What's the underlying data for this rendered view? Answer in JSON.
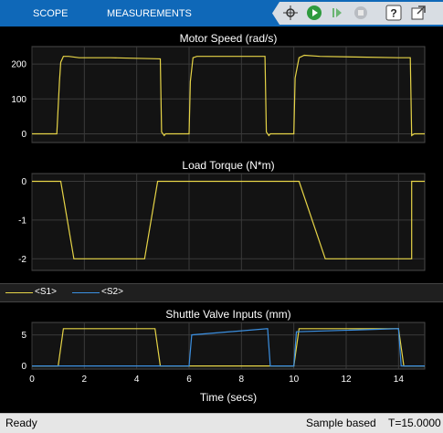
{
  "toolbar": {
    "tabs": [
      "SCOPE",
      "MEASUREMENTS"
    ],
    "icons": [
      "highlight-signal-icon",
      "run-icon",
      "step-forward-icon",
      "stop-icon",
      "help-icon",
      "undock-icon"
    ]
  },
  "plots": [
    {
      "title": "Motor Speed (rad/s)",
      "yticks": [
        0,
        100,
        200
      ],
      "ylim": [
        -25,
        250
      ]
    },
    {
      "title": "Load Torque (N*m)",
      "yticks": [
        0,
        -1,
        -2
      ],
      "ylim": [
        -2.3,
        0.2
      ]
    },
    {
      "title": "Shuttle Valve Inputs (mm)",
      "yticks": [
        0,
        5
      ],
      "ylim": [
        -0.5,
        7
      ]
    }
  ],
  "legend": {
    "items": [
      {
        "label": "<S1>",
        "color": "#e6d447"
      },
      {
        "label": "<S2>",
        "color": "#3b8fe0"
      }
    ]
  },
  "xaxis": {
    "label": "Time (secs)",
    "ticks": [
      "0",
      "2",
      "4",
      "6",
      "8",
      "10",
      "12",
      "14"
    ],
    "xlim": [
      0,
      15
    ]
  },
  "status": {
    "left": "Ready",
    "mode": "Sample based",
    "time": "T=15.0000"
  },
  "chart_data": [
    {
      "type": "line",
      "title": "Motor Speed (rad/s)",
      "xlabel": "",
      "ylabel": "",
      "xlim": [
        0,
        15
      ],
      "ylim": [
        -25,
        250
      ],
      "grid": true,
      "series": [
        {
          "name": "<S1>",
          "x": [
            0,
            0.95,
            1.05,
            1.1,
            1.2,
            1.4,
            1.8,
            3,
            4.9,
            4.95,
            5.05,
            5.1,
            5.2,
            6,
            6.05,
            6.15,
            6.3,
            6.8,
            8.9,
            8.95,
            9.05,
            9.1,
            9.2,
            10,
            10.05,
            10.2,
            10.4,
            11,
            14,
            14.45,
            14.5,
            14.6,
            15
          ],
          "y": [
            0,
            0,
            150,
            205,
            222,
            222,
            218,
            218,
            215,
            5,
            -5,
            0,
            0,
            0,
            150,
            218,
            222,
            222,
            222,
            5,
            -5,
            0,
            0,
            0,
            160,
            218,
            225,
            222,
            218,
            218,
            -5,
            0,
            0
          ],
          "color": "#e6d447"
        }
      ]
    },
    {
      "type": "line",
      "title": "Load Torque (N*m)",
      "xlabel": "",
      "ylabel": "",
      "xlim": [
        0,
        15
      ],
      "ylim": [
        -2.3,
        0.2
      ],
      "grid": true,
      "series": [
        {
          "name": "<S1>",
          "x": [
            0,
            1.1,
            1.6,
            4.3,
            4.8,
            10.2,
            11.2,
            14.5,
            14.5,
            15
          ],
          "y": [
            0,
            0,
            -2,
            -2,
            0,
            0,
            -2,
            -2,
            0,
            0
          ],
          "color": "#e6d447"
        }
      ]
    },
    {
      "type": "line",
      "title": "Shuttle Valve Inputs (mm)",
      "xlabel": "Time (secs)",
      "ylabel": "",
      "xlim": [
        0,
        15
      ],
      "ylim": [
        -0.5,
        7
      ],
      "grid": true,
      "series": [
        {
          "name": "<S1>",
          "x": [
            0,
            1.0,
            1.2,
            4.7,
            4.9,
            10.0,
            10.2,
            14.0,
            14.2,
            15
          ],
          "y": [
            0,
            0,
            6,
            6,
            0,
            0,
            6,
            6,
            0,
            0
          ],
          "color": "#e6d447"
        },
        {
          "name": "<S2>",
          "x": [
            0,
            6.0,
            6.1,
            9.0,
            9.1,
            10.0,
            10.1,
            14.0,
            14.1,
            15
          ],
          "y": [
            0,
            0,
            5,
            6,
            0,
            0,
            5.5,
            6,
            0,
            0
          ],
          "color": "#3b8fe0"
        }
      ]
    }
  ]
}
